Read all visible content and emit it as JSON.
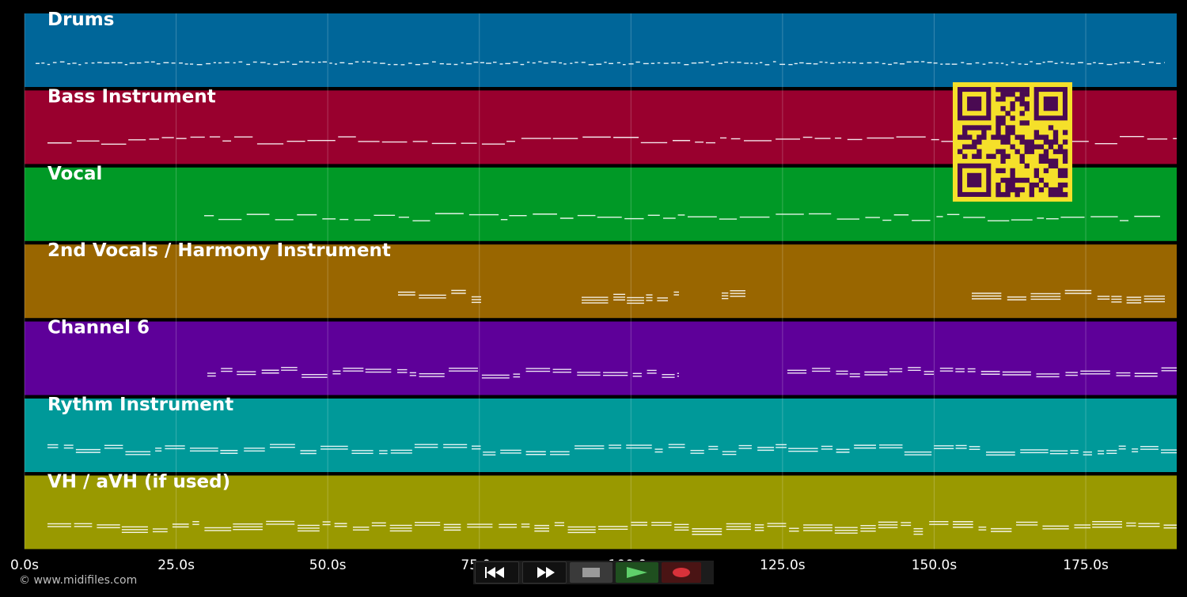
{
  "app": {
    "copyright": "© www.midifiles.com"
  },
  "timeline": {
    "duration_s": 190,
    "ticks": [
      "0.0s",
      "25.0s",
      "50.0s",
      "75.0s",
      "100.0s",
      "125.0s",
      "150.0s",
      "175.0s"
    ]
  },
  "tracks": [
    {
      "label": "Drums",
      "color": "#006699"
    },
    {
      "label": "Bass Instrument",
      "color": "#99002e"
    },
    {
      "label": "Vocal",
      "color": "#009926"
    },
    {
      "label": "2nd Vocals / Harmony Instrument",
      "color": "#996600"
    },
    {
      "label": "Channel 6",
      "color": "#5e0099"
    },
    {
      "label": "Rythm Instrument",
      "color": "#009999"
    },
    {
      "label": "VH / aVH (if used)",
      "color": "#999900"
    }
  ],
  "qr_code": {
    "colors": {
      "fg": "#4a0a52",
      "bg": "#f5e02a"
    }
  },
  "transport": {
    "buttons": [
      {
        "name": "rewind-button",
        "icon": "rewind-icon"
      },
      {
        "name": "fast-forward-button",
        "icon": "fast-forward-icon"
      },
      {
        "name": "stop-button",
        "icon": "stop-icon"
      },
      {
        "name": "play-button",
        "icon": "play-icon"
      },
      {
        "name": "record-button",
        "icon": "record-icon"
      }
    ]
  }
}
